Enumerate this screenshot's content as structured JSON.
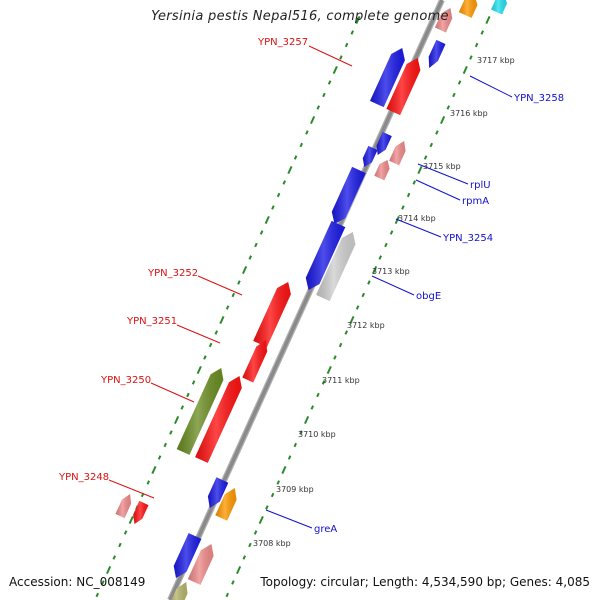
{
  "title": "Yersinia pestis Nepal516, complete genome",
  "footer": {
    "accession": "Accession: NC_008149",
    "summary": "Topology: circular; Length: 4,534,590 bp; Genes: 4,085"
  },
  "colors": {
    "backbone": "#8a8a8a",
    "tick_green": "#2a8a2a",
    "label_red": "#dd1111",
    "label_blue": "#1111cc",
    "gene_blue": "#1a1ae6",
    "gene_red": "#ff1111",
    "gene_pink": "#ef8a8a",
    "gene_olive": "#6b8e23",
    "gene_gray": "#cfcfcf",
    "gene_orange": "#ff9900",
    "gene_cyan": "#22e0f0",
    "gene_khaki": "#b5b56a"
  },
  "scale": {
    "unit": "kbp",
    "ticks": [
      {
        "label": "3717 kbp"
      },
      {
        "label": "3716 kbp"
      },
      {
        "label": "3715 kbp"
      },
      {
        "label": "3714 kbp"
      },
      {
        "label": "3713 kbp"
      },
      {
        "label": "3712 kbp"
      },
      {
        "label": "3711 kbp"
      },
      {
        "label": "3710 kbp"
      },
      {
        "label": "3709 kbp"
      },
      {
        "label": "3708 kbp"
      }
    ]
  },
  "gene_labels": [
    {
      "name": "YPN_3257",
      "color": "red"
    },
    {
      "name": "YPN_3258",
      "color": "blue"
    },
    {
      "name": "rplU",
      "color": "blue"
    },
    {
      "name": "rpmA",
      "color": "blue"
    },
    {
      "name": "YPN_3254",
      "color": "blue"
    },
    {
      "name": "obgE",
      "color": "blue"
    },
    {
      "name": "YPN_3252",
      "color": "red"
    },
    {
      "name": "YPN_3251",
      "color": "red"
    },
    {
      "name": "YPN_3250",
      "color": "red"
    },
    {
      "name": "YPN_3248",
      "color": "red"
    },
    {
      "name": "greA",
      "color": "blue"
    }
  ]
}
